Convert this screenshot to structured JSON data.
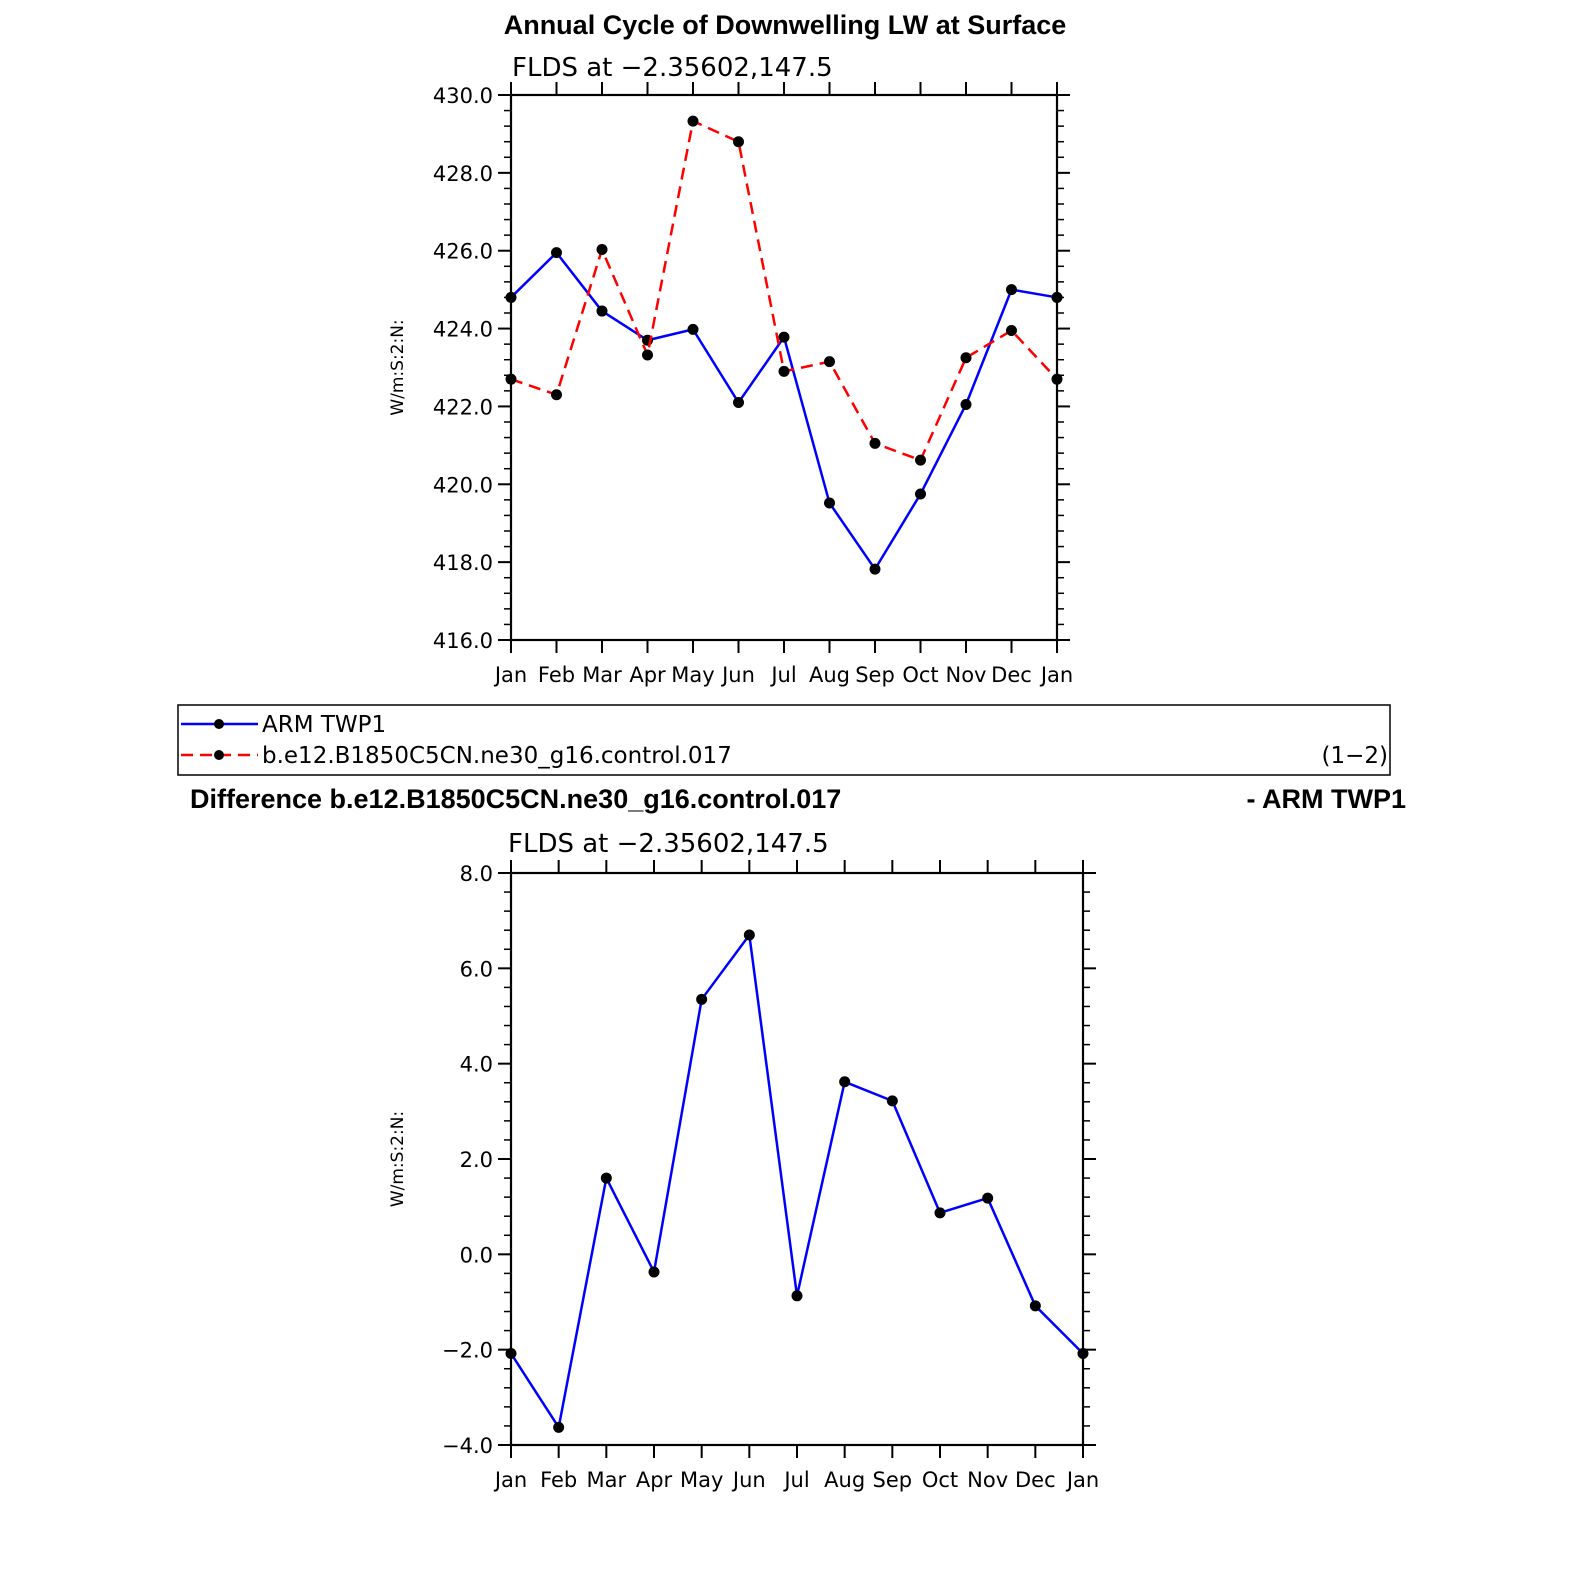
{
  "chart_data": [
    {
      "type": "line",
      "title": "Annual Cycle of Downwelling LW at Surface",
      "subtitle": "FLDS at −2.35602,147.5",
      "ylabel": "W/m:S:2:N:",
      "xlabel": "",
      "categories": [
        "Jan",
        "Feb",
        "Mar",
        "Apr",
        "May",
        "Jun",
        "Jul",
        "Aug",
        "Sep",
        "Oct",
        "Nov",
        "Dec",
        "Jan"
      ],
      "ylim": [
        416,
        430
      ],
      "yticks": [
        "416.0",
        "418.0",
        "420.0",
        "422.0",
        "424.0",
        "426.0",
        "428.0",
        "430.0"
      ],
      "grid": false,
      "series": [
        {
          "name": "ARM TWP1",
          "color": "#0000ff",
          "dash": "solid",
          "values": [
            424.8,
            425.95,
            424.45,
            423.7,
            423.98,
            422.1,
            423.78,
            419.52,
            417.82,
            419.75,
            422.05,
            425.0,
            424.8
          ]
        },
        {
          "name": "b.e12.B1850C5CN.ne30_g16.control.017",
          "color": "#ff0000",
          "dash": "dashed",
          "values": [
            422.7,
            422.3,
            426.03,
            423.32,
            429.33,
            428.8,
            422.9,
            423.15,
            421.05,
            420.62,
            423.25,
            423.95,
            422.7
          ]
        }
      ],
      "marker_color": "#000000"
    },
    {
      "type": "line",
      "title": "Difference b.e12.B1850C5CN.ne30_g16.control.017",
      "title_right": "- ARM TWP1",
      "subtitle": "FLDS at −2.35602,147.5",
      "ylabel": "W/m:S:2:N:",
      "xlabel": "",
      "categories": [
        "Jan",
        "Feb",
        "Mar",
        "Apr",
        "May",
        "Jun",
        "Jul",
        "Aug",
        "Sep",
        "Oct",
        "Nov",
        "Dec",
        "Jan"
      ],
      "ylim": [
        -4,
        8
      ],
      "yticks": [
        "−4.0",
        "−2.0",
        "0.0",
        "2.0",
        "4.0",
        "6.0",
        "8.0"
      ],
      "grid": false,
      "series": [
        {
          "name": "",
          "color": "#0000ff",
          "dash": "solid",
          "values": [
            -2.08,
            -3.63,
            1.6,
            -0.37,
            5.35,
            6.7,
            -0.87,
            3.62,
            3.22,
            0.87,
            1.18,
            -1.08,
            -2.08
          ]
        }
      ],
      "marker_color": "#000000"
    }
  ],
  "legend": {
    "placement": "between plots",
    "items": [
      {
        "label": "ARM TWP1",
        "color": "#0000ff",
        "dash": "solid"
      },
      {
        "label": "b.e12.B1850C5CN.ne30_g16.control.017",
        "color": "#ff0000",
        "dash": "dashed"
      }
    ],
    "note": "(1−2)"
  }
}
